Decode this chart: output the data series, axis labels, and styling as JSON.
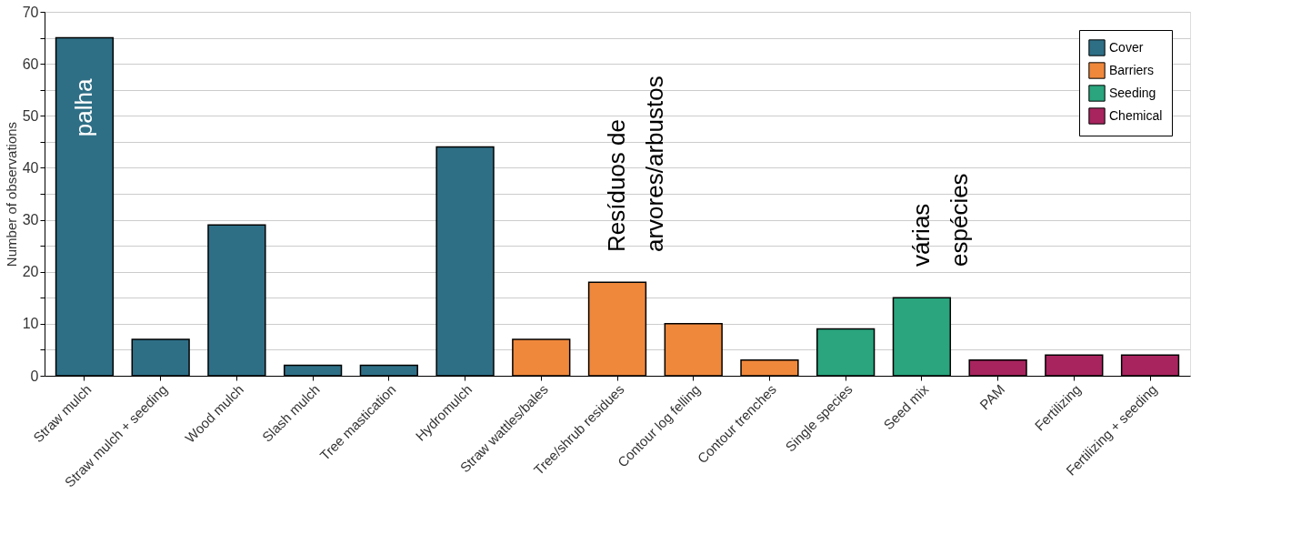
{
  "chart_data": {
    "type": "bar",
    "ylabel": "Number of observations",
    "categories": [
      "Straw mulch",
      "Straw mulch + seeding",
      "Wood mulch",
      "Slash mulch",
      "Tree mastication",
      "Hydromulch",
      "Straw wattles/bales",
      "Tree/shrub residues",
      "Contour log felling",
      "Contour trenches",
      "Single species",
      "Seed mix",
      "PAM",
      "Fertilizing",
      "Fertilizing + seeding"
    ],
    "series": [
      {
        "name": "Cover",
        "color": "#2e6f86",
        "values": [
          65,
          7,
          29,
          2,
          2,
          44,
          null,
          null,
          null,
          null,
          null,
          null,
          null,
          null,
          null
        ]
      },
      {
        "name": "Barriers",
        "color": "#f0883c",
        "values": [
          null,
          null,
          null,
          null,
          null,
          null,
          7,
          18,
          10,
          3,
          null,
          null,
          null,
          null,
          null
        ]
      },
      {
        "name": "Seeding",
        "color": "#2aa57e",
        "values": [
          null,
          null,
          null,
          null,
          null,
          null,
          null,
          null,
          null,
          null,
          9,
          15,
          null,
          null,
          null
        ]
      },
      {
        "name": "Chemical",
        "color": "#a8245e",
        "values": [
          null,
          null,
          null,
          null,
          null,
          null,
          null,
          null,
          null,
          null,
          null,
          null,
          3,
          4,
          4
        ]
      }
    ],
    "ylim": [
      0,
      70
    ],
    "yticks": [
      0,
      {
        "value": 5,
        "label": null
      },
      10,
      {
        "value": 15,
        "label": null
      },
      20,
      {
        "value": 25,
        "label": null
      },
      30,
      {
        "value": 35,
        "label": null
      },
      40,
      {
        "value": 45,
        "label": null
      },
      50,
      {
        "value": 55,
        "label": null
      },
      60,
      {
        "value": 65,
        "label": null
      },
      70
    ],
    "grid": "y",
    "legend": "top right",
    "annotations": [
      {
        "text": "palha",
        "x": "Straw mulch",
        "y": 46
      },
      "Resíduos de\narvores/arbustos",
      "várias\nespécies"
    ]
  }
}
